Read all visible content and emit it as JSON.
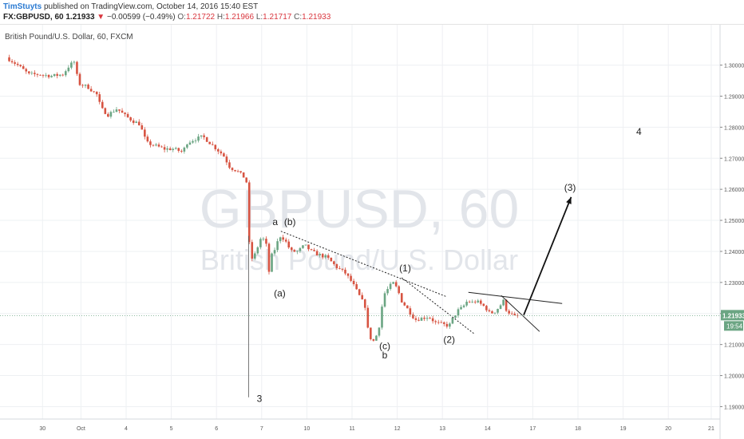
{
  "header": {
    "author": "TimStuyts",
    "published_text": "published on TradingView.com, October 14, 2016 15:40 EST",
    "symbol": "FX:GBPUSD, 60",
    "last_price": "1.21933",
    "change_arrow": "▼",
    "change": "−0.00599 (−0.49%)",
    "open_label": "O:",
    "open": "1.21722",
    "high_label": "H:",
    "high": "1.21966",
    "low_label": "L:",
    "low": "1.21717",
    "close_label": "C:",
    "close": "1.21933"
  },
  "chart_data": {
    "type": "candlestick",
    "title": "British Pound/U.S. Dollar, 60, FXCM",
    "watermark_symbol": "GBPUSD, 60",
    "watermark_name": "British Pound/U.S. Dollar",
    "ylim": [
      1.186,
      1.313
    ],
    "y_ticks": [
      "1.30000",
      "1.29000",
      "1.28000",
      "1.27000",
      "1.26000",
      "1.25000",
      "1.24000",
      "1.23000",
      "1.22000",
      "1.21000",
      "1.20000",
      "1.19000"
    ],
    "x_ticks": [
      "30",
      "Oct",
      "4",
      "5",
      "6",
      "7",
      "10",
      "11",
      "12",
      "13",
      "14",
      "17",
      "18",
      "19",
      "20",
      "21"
    ],
    "current_price_label": "1.21933",
    "countdown_label": "19:54",
    "colors": {
      "up": "#6ba583",
      "down": "#d75442",
      "wick": "#555555",
      "price_label_bg": "#6ba583"
    },
    "price_path": [
      [
        0,
        1.3025
      ],
      [
        0.5,
        1.3
      ],
      [
        1.0,
        1.297
      ],
      [
        1.5,
        1.297
      ],
      [
        2.0,
        1.2965
      ],
      [
        2.5,
        1.297
      ],
      [
        2.8,
        1.3
      ],
      [
        3.0,
        1.301
      ],
      [
        3.2,
        1.294
      ],
      [
        3.6,
        1.293
      ],
      [
        4.0,
        1.2905
      ],
      [
        4.2,
        1.286
      ],
      [
        4.5,
        1.284
      ],
      [
        4.9,
        1.286
      ],
      [
        5.2,
        1.284
      ],
      [
        5.6,
        1.282
      ],
      [
        5.9,
        1.281
      ],
      [
        6.2,
        1.275
      ],
      [
        6.6,
        1.274
      ],
      [
        7.0,
        1.273
      ],
      [
        7.4,
        1.273
      ],
      [
        7.8,
        1.272
      ],
      [
        8.0,
        1.275
      ],
      [
        8.3,
        1.276
      ],
      [
        8.7,
        1.277
      ],
      [
        9.0,
        1.275
      ],
      [
        9.3,
        1.273
      ],
      [
        9.6,
        1.271
      ],
      [
        9.9,
        1.267
      ],
      [
        10.2,
        1.266
      ],
      [
        10.5,
        1.264
      ],
      [
        10.65,
        1.262
      ],
      [
        10.7,
        1.245
      ],
      [
        10.8,
        1.24
      ],
      [
        10.9,
        1.237
      ],
      [
        11.1,
        1.241
      ],
      [
        11.3,
        1.245
      ],
      [
        11.5,
        1.242
      ],
      [
        11.6,
        1.232
      ],
      [
        11.7,
        1.238
      ],
      [
        11.9,
        1.241
      ],
      [
        12.1,
        1.245
      ],
      [
        12.3,
        1.244
      ],
      [
        12.6,
        1.24
      ],
      [
        12.9,
        1.24
      ],
      [
        13.2,
        1.242
      ],
      [
        13.5,
        1.24
      ],
      [
        13.8,
        1.239
      ],
      [
        14.2,
        1.238
      ],
      [
        14.6,
        1.235
      ],
      [
        15.0,
        1.233
      ],
      [
        15.3,
        1.23
      ],
      [
        15.6,
        1.226
      ],
      [
        15.9,
        1.222
      ],
      [
        16.0,
        1.215
      ],
      [
        16.15,
        1.2115
      ],
      [
        16.3,
        1.211
      ],
      [
        16.5,
        1.216
      ],
      [
        16.7,
        1.226
      ],
      [
        16.9,
        1.228
      ],
      [
        17.1,
        1.23
      ],
      [
        17.3,
        1.228
      ],
      [
        17.5,
        1.224
      ],
      [
        17.7,
        1.222
      ],
      [
        17.9,
        1.22
      ],
      [
        18.1,
        1.218
      ],
      [
        18.4,
        1.2185
      ],
      [
        18.7,
        1.219
      ],
      [
        19.0,
        1.217
      ],
      [
        19.3,
        1.2165
      ],
      [
        19.6,
        1.216
      ],
      [
        19.8,
        1.219
      ],
      [
        20.0,
        1.221
      ],
      [
        20.2,
        1.222
      ],
      [
        20.4,
        1.224
      ],
      [
        20.6,
        1.2235
      ],
      [
        20.8,
        1.224
      ],
      [
        21.0,
        1.223
      ],
      [
        21.2,
        1.222
      ],
      [
        21.4,
        1.22
      ],
      [
        21.6,
        1.2205
      ],
      [
        21.8,
        1.222
      ],
      [
        22.0,
        1.224
      ],
      [
        22.1,
        1.2215
      ],
      [
        22.3,
        1.22
      ],
      [
        22.5,
        1.219
      ],
      [
        22.7,
        1.21933
      ]
    ],
    "trendlines": [
      {
        "from": [
          12.15,
          1.2465
        ],
        "to": [
          19.45,
          1.2255
        ],
        "style": "dashed"
      },
      {
        "from": [
          17.5,
          1.2315
        ],
        "to": [
          20.7,
          1.2135
        ],
        "style": "dashed"
      },
      {
        "from": [
          20.45,
          1.2268
        ],
        "to": [
          24.6,
          1.2232
        ],
        "style": "solid"
      },
      {
        "from": [
          21.9,
          1.2258
        ],
        "to": [
          23.6,
          1.2142
        ],
        "style": "solid"
      }
    ],
    "projection_arrow": {
      "from": [
        22.9,
        1.2195
      ],
      "to": [
        25.0,
        1.2575
      ]
    },
    "wave_labels": [
      {
        "text": "a",
        "x": 11.9,
        "y": 1.2485
      },
      {
        "text": "(b)",
        "x": 12.55,
        "y": 1.2485
      },
      {
        "text": "(a)",
        "x": 12.1,
        "y": 1.2255
      },
      {
        "text": "(1)",
        "x": 17.65,
        "y": 1.2335
      },
      {
        "text": "(c)",
        "x": 16.75,
        "y": 1.2085
      },
      {
        "text": "b",
        "x": 16.75,
        "y": 1.2055
      },
      {
        "text": "(2)",
        "x": 19.6,
        "y": 1.2105
      },
      {
        "text": "(3)",
        "x": 24.95,
        "y": 1.2595
      },
      {
        "text": "3",
        "x": 11.2,
        "y": 1.1915
      },
      {
        "text": "4",
        "x": 28.0,
        "y": 1.2775
      }
    ],
    "x_tick_positions": [
      1.6,
      3.3,
      5.3,
      7.3,
      9.3,
      11.3,
      13.3,
      15.3,
      17.3,
      19.3,
      21.3,
      23.3,
      25.3,
      27.3,
      29.3,
      31.2
    ]
  }
}
